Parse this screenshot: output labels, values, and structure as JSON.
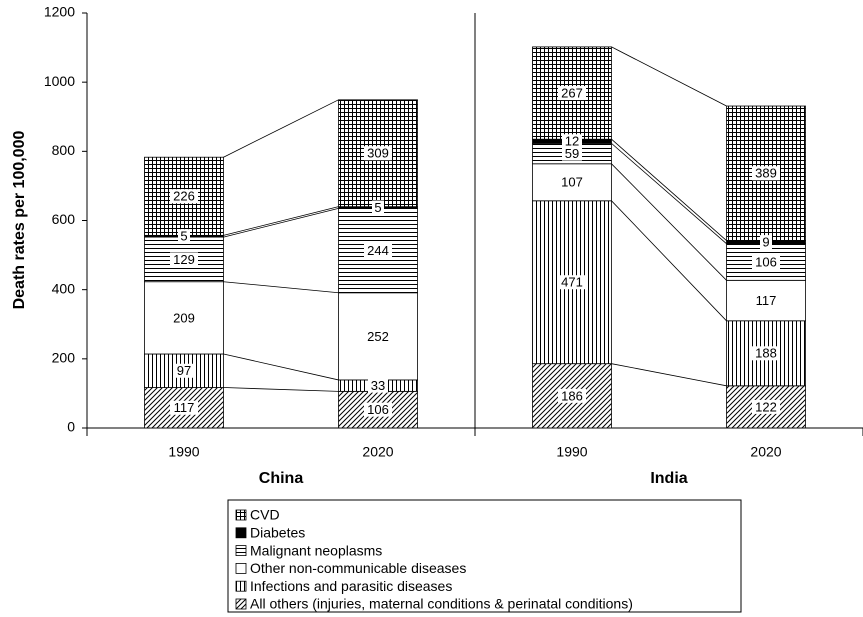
{
  "chart_data": {
    "type": "stacked_bar",
    "y_label": "Death rates per 100,000",
    "groups": [
      "China",
      "India"
    ],
    "categories": [
      "1990",
      "2020",
      "1990",
      "2020"
    ],
    "ylim": [
      0,
      1200
    ],
    "yticks": [
      0,
      200,
      400,
      600,
      800,
      1000,
      1200
    ],
    "series": [
      {
        "name": "All others (injuries, maternal conditions & perinatal conditions)",
        "color": "#000000",
        "pattern": "diagonal",
        "values": [
          117,
          106,
          186,
          122
        ]
      },
      {
        "name": "Infections and parasitic diseases",
        "color": "#000000",
        "pattern": "vertical",
        "values": [
          97,
          33,
          471,
          188
        ]
      },
      {
        "name": "Other non-communicable diseases",
        "color": "#000000",
        "pattern": "none",
        "values": [
          209,
          252,
          107,
          117
        ]
      },
      {
        "name": "Malignant neoplasms",
        "color": "#000000",
        "pattern": "horizontal",
        "values": [
          129,
          244,
          59,
          106
        ]
      },
      {
        "name": "Diabetes",
        "color": "#000000",
        "pattern": "solid",
        "values": [
          5,
          5,
          12,
          9
        ]
      },
      {
        "name": "CVD",
        "color": "#000000",
        "pattern": "grid",
        "values": [
          226,
          309,
          267,
          389
        ]
      }
    ]
  }
}
